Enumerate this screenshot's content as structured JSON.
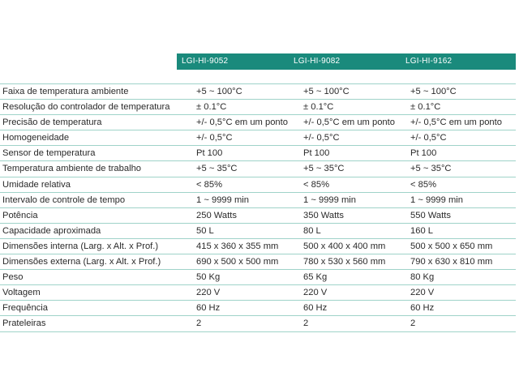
{
  "models": [
    "LGI-HI-9052",
    "LGI-HI-9082",
    "LGI-HI-9162"
  ],
  "rows": [
    {
      "label": "Faixa de temperatura ambiente",
      "v": [
        "+5 ~ 100°C",
        "+5 ~ 100°C",
        "+5 ~ 100°C"
      ]
    },
    {
      "label": "Resolução do controlador de temperatura",
      "v": [
        "± 0.1°C",
        "± 0.1°C",
        "± 0.1°C"
      ]
    },
    {
      "label": "Precisão de temperatura",
      "v": [
        "+/- 0,5°C em um ponto",
        "+/- 0,5°C em um ponto",
        "+/- 0,5°C em um ponto"
      ]
    },
    {
      "label": "Homogeneidade",
      "v": [
        "+/- 0,5°C",
        "+/- 0,5°C",
        "+/- 0,5°C"
      ]
    },
    {
      "label": "Sensor de temperatura",
      "v": [
        "Pt 100",
        "Pt 100",
        "Pt 100"
      ]
    },
    {
      "label": "Temperatura ambiente de trabalho",
      "v": [
        "+5 ~ 35°C",
        "+5 ~ 35°C",
        "+5 ~ 35°C"
      ]
    },
    {
      "label": "Umidade relativa",
      "v": [
        "< 85%",
        "< 85%",
        "< 85%"
      ]
    },
    {
      "label": "Intervalo de controle de tempo",
      "v": [
        "1 ~ 9999 min",
        "1 ~ 9999 min",
        "1 ~ 9999 min"
      ]
    },
    {
      "label": "Potência",
      "v": [
        "250 Watts",
        "350 Watts",
        "550 Watts"
      ]
    },
    {
      "label": "Capacidade aproximada",
      "v": [
        "50 L",
        "80 L",
        "160 L"
      ]
    },
    {
      "label": "Dimensões interna (Larg. x Alt. x Prof.)",
      "v": [
        "415 x 360 x 355 mm",
        "500 x 400 x 400 mm",
        "500 x 500 x 650 mm"
      ]
    },
    {
      "label": "Dimensões externa (Larg. x Alt. x Prof.)",
      "v": [
        "690 x 500 x 500 mm",
        "780 x 530 x 560 mm",
        "790 x 630 x 810 mm"
      ]
    },
    {
      "label": "Peso",
      "v": [
        "50 Kg",
        "65 Kg",
        "80 Kg"
      ]
    },
    {
      "label": "Voltagem",
      "v": [
        "220 V",
        "220 V",
        "220 V"
      ]
    },
    {
      "label": "Frequência",
      "v": [
        "60 Hz",
        "60 Hz",
        "60 Hz"
      ]
    },
    {
      "label": "Prateleiras",
      "v": [
        "2",
        "2",
        "2"
      ]
    }
  ],
  "colors": {
    "header_bg": "#1a8a7c",
    "row_line": "#9fd3c9"
  }
}
